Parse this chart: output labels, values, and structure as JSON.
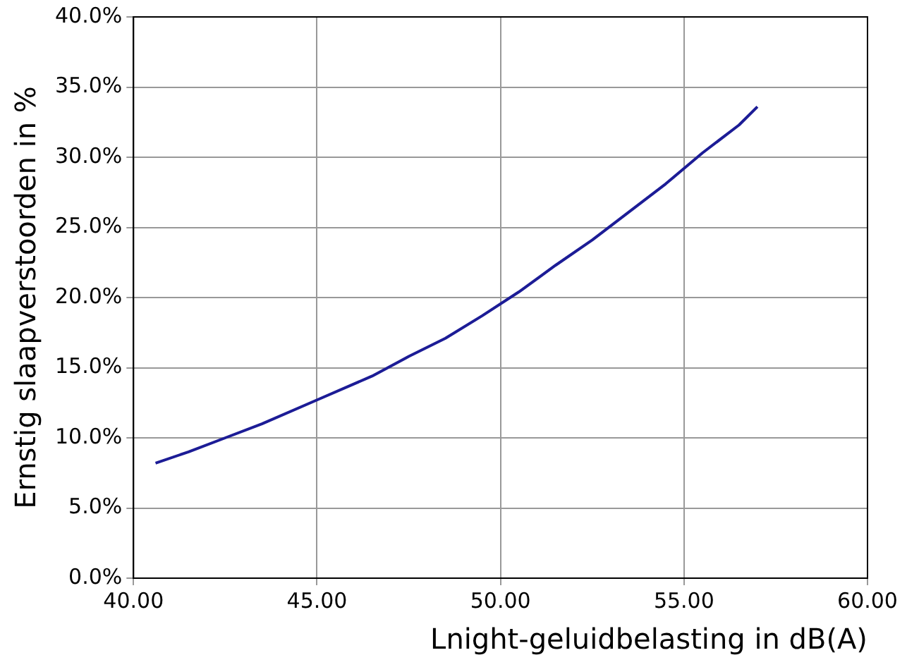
{
  "chart_data": {
    "type": "line",
    "xlabel": "Lnight-geluidbelasting in dB(A)",
    "ylabel": "Ernstig slaapverstoorden in %",
    "x": [
      40.6,
      41.5,
      42.5,
      43.5,
      45,
      46.5,
      47.5,
      48.5,
      49.5,
      50.5,
      51.5,
      52.5,
      53.5,
      54.5,
      55.5,
      56.5,
      57.0
    ],
    "series": [
      {
        "color": "#1c1c96",
        "values": [
          8.2,
          9.0,
          10.0,
          11.0,
          12.7,
          14.4,
          15.8,
          17.1,
          18.7,
          20.4,
          22.3,
          24.1,
          26.1,
          28.1,
          30.3,
          32.3,
          33.6
        ]
      }
    ],
    "xlim": [
      40,
      60
    ],
    "xticks": [
      {
        "value": 40,
        "label": "40.00"
      },
      {
        "value": 45,
        "label": "45.00"
      },
      {
        "value": 50,
        "label": "50.00"
      },
      {
        "value": 55,
        "label": "55.00"
      },
      {
        "value": 60,
        "label": "60.00"
      }
    ],
    "ylim": [
      0,
      40
    ],
    "yticks": [
      {
        "value": 0,
        "label": "0.0%"
      },
      {
        "value": 5,
        "label": "5.0%"
      },
      {
        "value": 10,
        "label": "10.0%"
      },
      {
        "value": 15,
        "label": "15.0%"
      },
      {
        "value": 20,
        "label": "20.0%"
      },
      {
        "value": 25,
        "label": "25.0%"
      },
      {
        "value": 30,
        "label": "30.0%"
      },
      {
        "value": 35,
        "label": "35.0%"
      },
      {
        "value": 40,
        "label": "40.0%"
      }
    ],
    "grid": true,
    "legend": false,
    "marker": "none",
    "line_style": "solid"
  }
}
